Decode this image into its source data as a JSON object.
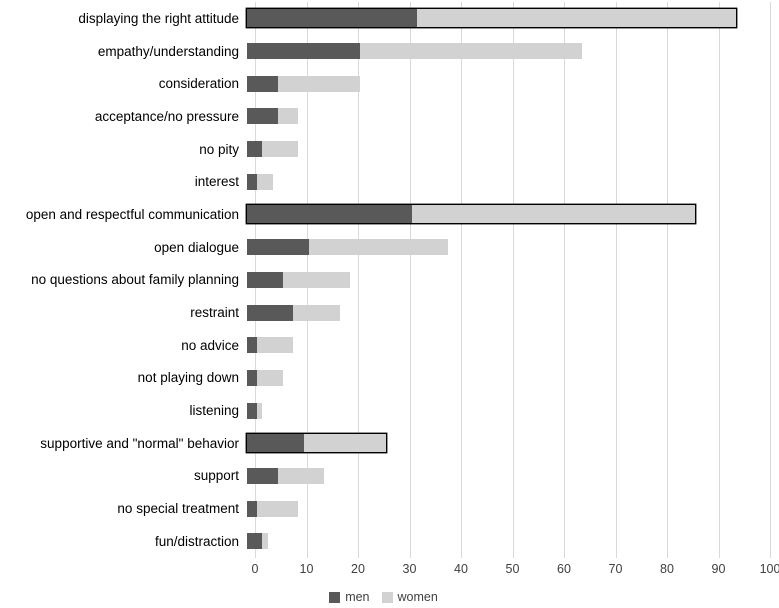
{
  "chart_data": {
    "type": "bar",
    "orientation": "horizontal",
    "stacked": true,
    "title": "",
    "xlabel": "",
    "ylabel": "",
    "categories": [
      "displaying the right attitude",
      "empathy/understanding",
      "consideration",
      "acceptance/no pressure",
      "no pity",
      "interest",
      "open and respectful communication",
      "open dialogue",
      "no questions about family planning",
      "restraint",
      "no advice",
      "not playing down",
      "listening",
      "supportive and \"normal\" behavior",
      "support",
      "no special treatment",
      "fun/distraction"
    ],
    "series": [
      {
        "name": "men",
        "color": "#595959",
        "values": [
          33,
          22,
          6,
          6,
          3,
          2,
          32,
          12,
          7,
          9,
          2,
          2,
          2,
          11,
          6,
          2,
          3
        ]
      },
      {
        "name": "women",
        "color": "#d2d2d2",
        "values": [
          62,
          43,
          16,
          4,
          7,
          3,
          55,
          27,
          13,
          9,
          7,
          5,
          1,
          16,
          9,
          8,
          1
        ]
      }
    ],
    "totals": [
      95,
      65,
      22,
      10,
      10,
      5,
      87,
      39,
      20,
      18,
      9,
      7,
      3,
      27,
      15,
      10,
      4
    ],
    "highlighted_categories": [
      0,
      6,
      13
    ],
    "xlim": [
      0,
      100
    ],
    "xticks": [
      0,
      10,
      20,
      30,
      40,
      50,
      60,
      70,
      80,
      90,
      100
    ],
    "grid": "vertical",
    "legend_position": "bottom",
    "gridline_color": "#d9d9d9",
    "highlight_border_color": "#000000"
  }
}
